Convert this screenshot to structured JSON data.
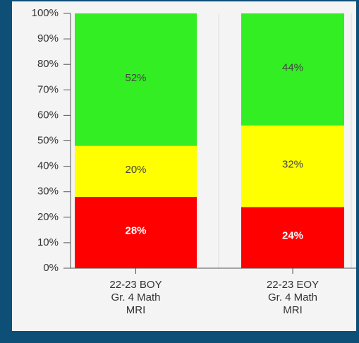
{
  "chart_data": {
    "type": "stacked_bar",
    "categories": [
      [
        "22-23 BOY",
        "Gr. 4 Math",
        "MRI"
      ],
      [
        "22-23 EOY",
        "Gr. 4 Math",
        "MRI"
      ]
    ],
    "series": [
      {
        "name": "Red",
        "color": "#ff0000",
        "label_color": "#ffffff",
        "values": [
          28,
          24
        ],
        "value_labels": [
          "28%",
          "24%"
        ]
      },
      {
        "name": "Yellow",
        "color": "#ffff00",
        "label_color": "#444444",
        "values": [
          20,
          32
        ],
        "value_labels": [
          "20%",
          "32%"
        ]
      },
      {
        "name": "Green",
        "color": "#33ee22",
        "label_color": "#444444",
        "values": [
          52,
          44
        ],
        "value_labels": [
          "52%",
          "44%"
        ]
      }
    ],
    "ylim": [
      0,
      100
    ],
    "yticks": [
      {
        "value": 0,
        "label": "0%"
      },
      {
        "value": 10,
        "label": "10%"
      },
      {
        "value": 20,
        "label": "20%"
      },
      {
        "value": 30,
        "label": "30%"
      },
      {
        "value": 40,
        "label": "40%"
      },
      {
        "value": 50,
        "label": "50%"
      },
      {
        "value": 60,
        "label": "60%"
      },
      {
        "value": 70,
        "label": "70%"
      },
      {
        "value": 80,
        "label": "80%"
      },
      {
        "value": 90,
        "label": "90%"
      },
      {
        "value": 100,
        "label": "100%"
      }
    ]
  }
}
